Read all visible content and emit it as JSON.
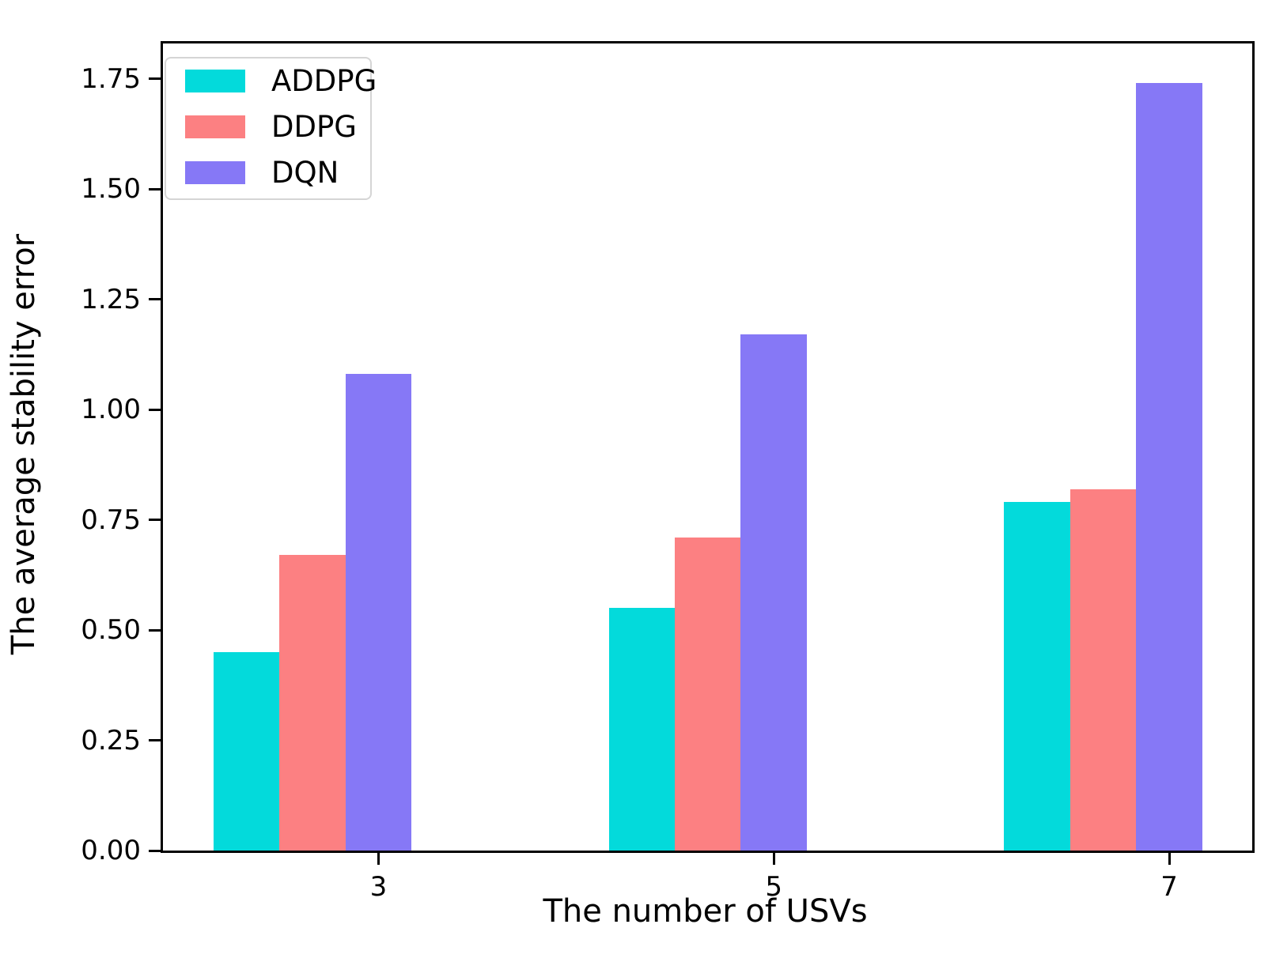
{
  "chart_data": {
    "type": "bar",
    "title": "",
    "xlabel": "The number of USVs",
    "ylabel": "The average stability error",
    "categories": [
      "3",
      "5",
      "7"
    ],
    "category_positions": [
      3,
      5,
      7
    ],
    "series": [
      {
        "name": "ADDPG",
        "color": "#03dadb",
        "values": [
          0.45,
          0.55,
          0.79
        ]
      },
      {
        "name": "DDPG",
        "color": "#fc8082",
        "values": [
          0.67,
          0.71,
          0.82
        ]
      },
      {
        "name": "DQN",
        "color": "#8678f6",
        "values": [
          1.08,
          1.17,
          1.74
        ]
      }
    ],
    "y_ticks": [
      "0.00",
      "0.25",
      "0.50",
      "0.75",
      "1.00",
      "1.25",
      "1.50",
      "1.75"
    ],
    "y_tick_values": [
      0,
      0.25,
      0.5,
      0.75,
      1.0,
      1.25,
      1.5,
      1.75
    ],
    "xlim": [
      1.91,
      7.42
    ],
    "ylim": [
      0,
      1.83
    ],
    "bar_width": 0.334,
    "bar_offsets": [
      -0.668,
      -0.334,
      0
    ],
    "grid": false,
    "legend_position": "upper left",
    "axis_color": "#000000",
    "background_color": "#ffffff"
  }
}
